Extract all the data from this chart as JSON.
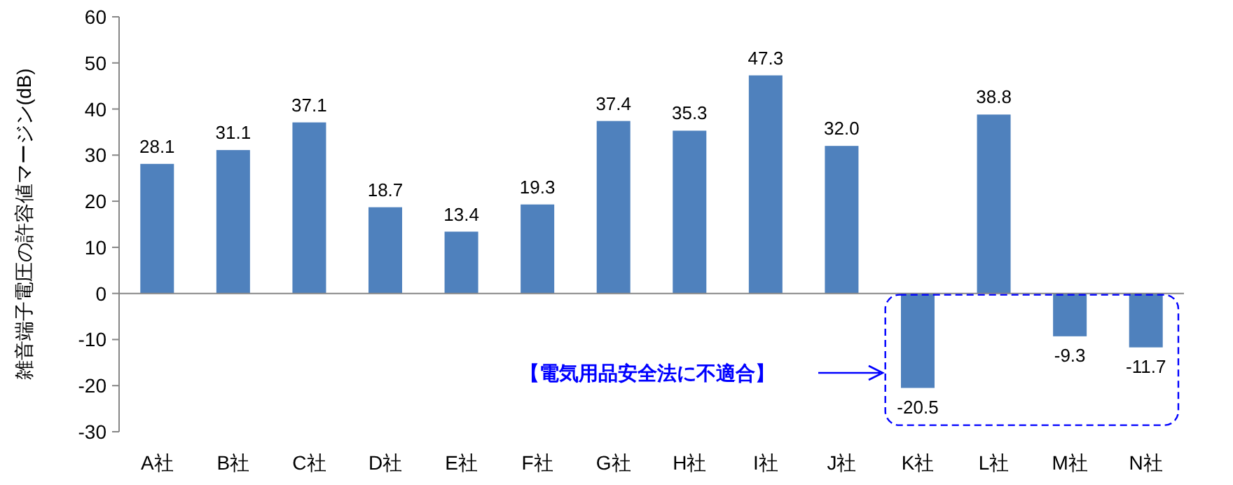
{
  "chart_data": {
    "type": "bar",
    "ylabel": "雑音端子電圧の許容値マージン(dB)",
    "categories": [
      "A社",
      "B社",
      "C社",
      "D社",
      "E社",
      "F社",
      "G社",
      "H社",
      "I社",
      "J社",
      "K社",
      "L社",
      "M社",
      "N社"
    ],
    "values": [
      28.1,
      31.1,
      37.1,
      18.7,
      13.4,
      19.3,
      37.4,
      35.3,
      47.3,
      32.0,
      -20.5,
      38.8,
      -9.3,
      -11.7
    ],
    "value_labels": [
      "28.1",
      "31.1",
      "37.1",
      "18.7",
      "13.4",
      "19.3",
      "37.4",
      "35.3",
      "47.3",
      "32.0",
      "-20.5",
      "38.8",
      "-9.3",
      "-11.7"
    ],
    "color": "#4f81bd",
    "ylim": [
      -30,
      60
    ],
    "yticks": [
      -30,
      -20,
      -10,
      0,
      10,
      20,
      30,
      40,
      50,
      60
    ],
    "annotations": [
      "【電気用品安全法に不適合】"
    ]
  }
}
